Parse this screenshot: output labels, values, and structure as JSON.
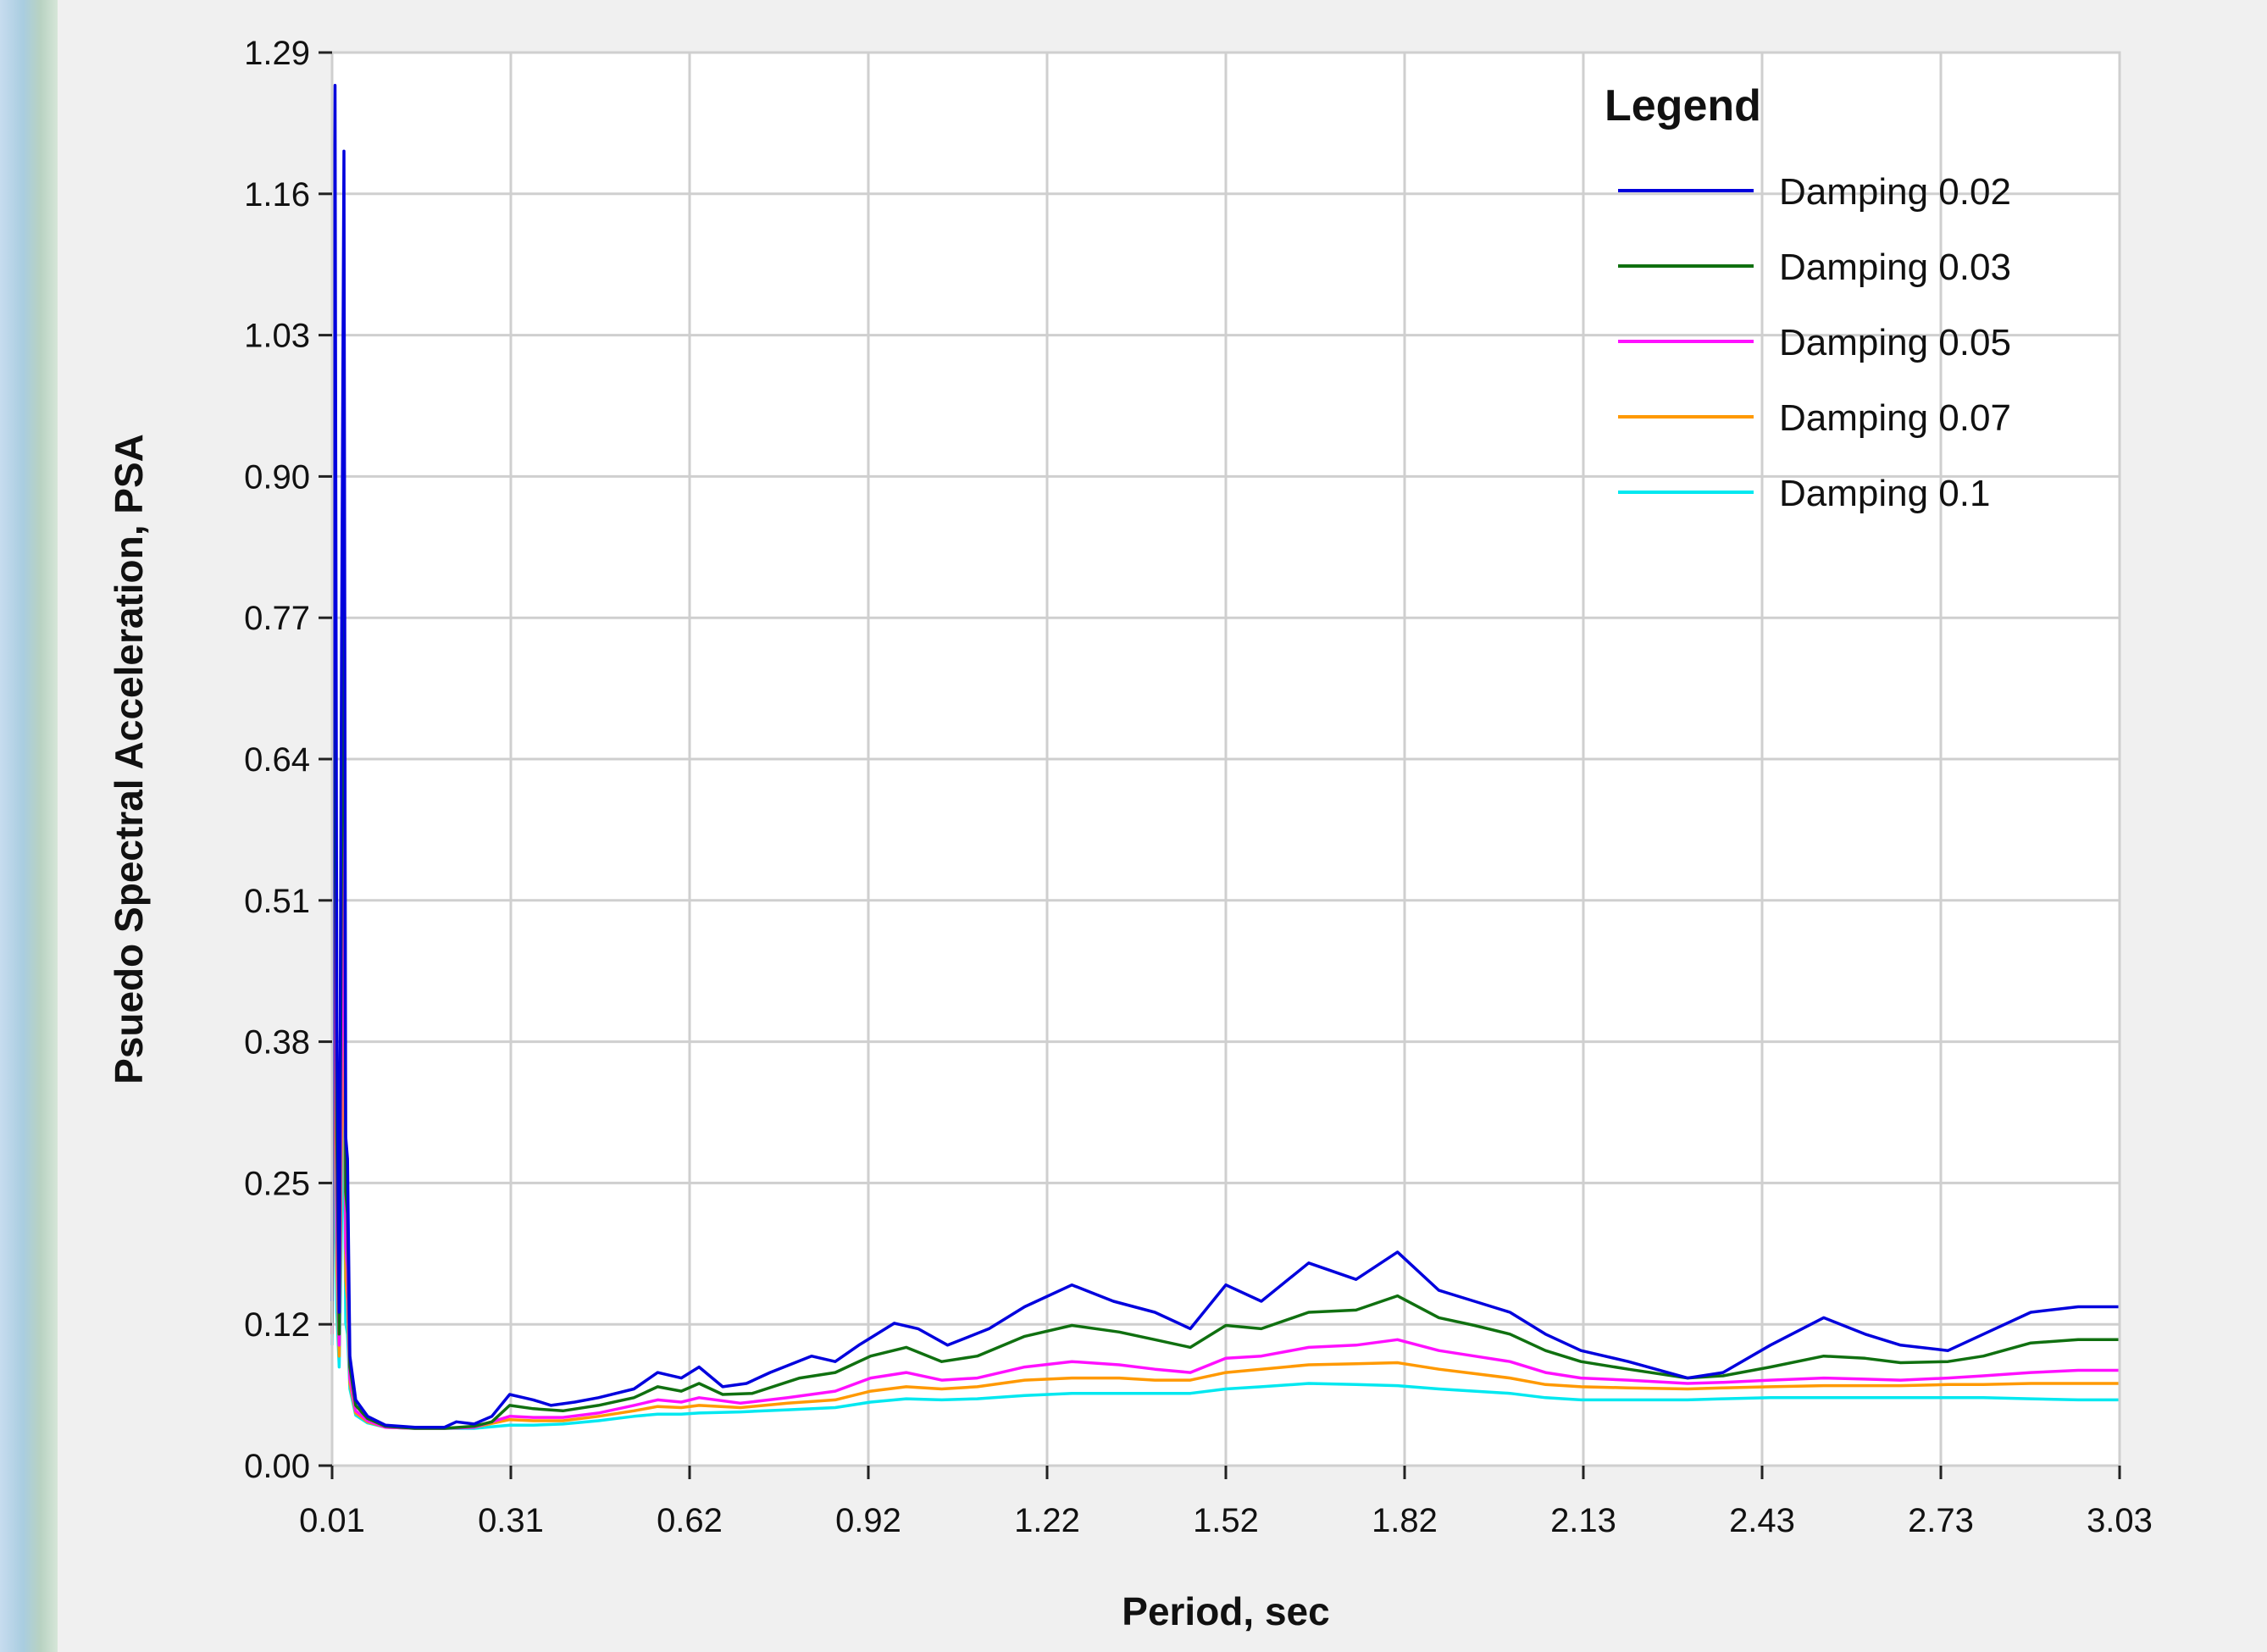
{
  "chart_data": {
    "type": "line",
    "xlabel": "Period, sec",
    "ylabel": "Psuedo Spectral Acceleration, PSA",
    "legend_title": "Legend",
    "legend_position": "top-right",
    "grid": true,
    "xlim": [
      0.01,
      3.03
    ],
    "ylim": [
      0.0,
      1.29
    ],
    "xticks": [
      "0.01",
      "0.31",
      "0.62",
      "0.92",
      "1.22",
      "1.52",
      "1.82",
      "2.13",
      "2.43",
      "2.73",
      "3.03"
    ],
    "yticks": [
      "0.00",
      "0.12",
      "0.25",
      "0.38",
      "0.51",
      "0.64",
      "0.77",
      "0.90",
      "1.03",
      "1.16",
      "1.29"
    ],
    "series": [
      {
        "name": "Damping 0.02",
        "color": "#0000dd",
        "points": [
          [
            0.01,
            0.15
          ],
          [
            0.012,
            0.8
          ],
          [
            0.015,
            1.26
          ],
          [
            0.018,
            0.4
          ],
          [
            0.022,
            0.14
          ],
          [
            0.026,
            0.75
          ],
          [
            0.03,
            1.2
          ],
          [
            0.033,
            0.3
          ],
          [
            0.036,
            0.28
          ],
          [
            0.04,
            0.1
          ],
          [
            0.05,
            0.06
          ],
          [
            0.07,
            0.045
          ],
          [
            0.1,
            0.037
          ],
          [
            0.15,
            0.035
          ],
          [
            0.2,
            0.035
          ],
          [
            0.22,
            0.04
          ],
          [
            0.25,
            0.038
          ],
          [
            0.28,
            0.045
          ],
          [
            0.31,
            0.065
          ],
          [
            0.35,
            0.06
          ],
          [
            0.38,
            0.055
          ],
          [
            0.42,
            0.058
          ],
          [
            0.46,
            0.062
          ],
          [
            0.52,
            0.07
          ],
          [
            0.56,
            0.085
          ],
          [
            0.6,
            0.08
          ],
          [
            0.63,
            0.09
          ],
          [
            0.67,
            0.072
          ],
          [
            0.71,
            0.075
          ],
          [
            0.75,
            0.085
          ],
          [
            0.82,
            0.1
          ],
          [
            0.86,
            0.095
          ],
          [
            0.9,
            0.11
          ],
          [
            0.96,
            0.13
          ],
          [
            1.0,
            0.125
          ],
          [
            1.05,
            0.11
          ],
          [
            1.12,
            0.125
          ],
          [
            1.18,
            0.145
          ],
          [
            1.26,
            0.165
          ],
          [
            1.33,
            0.15
          ],
          [
            1.4,
            0.14
          ],
          [
            1.46,
            0.125
          ],
          [
            1.52,
            0.165
          ],
          [
            1.58,
            0.15
          ],
          [
            1.66,
            0.185
          ],
          [
            1.74,
            0.17
          ],
          [
            1.81,
            0.195
          ],
          [
            1.88,
            0.16
          ],
          [
            1.94,
            0.15
          ],
          [
            2.0,
            0.14
          ],
          [
            2.06,
            0.12
          ],
          [
            2.12,
            0.105
          ],
          [
            2.2,
            0.095
          ],
          [
            2.3,
            0.08
          ],
          [
            2.36,
            0.085
          ],
          [
            2.44,
            0.11
          ],
          [
            2.53,
            0.135
          ],
          [
            2.6,
            0.12
          ],
          [
            2.66,
            0.11
          ],
          [
            2.74,
            0.105
          ],
          [
            2.8,
            0.12
          ],
          [
            2.88,
            0.14
          ],
          [
            2.96,
            0.145
          ],
          [
            3.03,
            0.145
          ]
        ]
      },
      {
        "name": "Damping 0.03",
        "color": "#107010",
        "points": [
          [
            0.01,
            0.13
          ],
          [
            0.012,
            0.6
          ],
          [
            0.015,
            0.92
          ],
          [
            0.018,
            0.3
          ],
          [
            0.022,
            0.12
          ],
          [
            0.026,
            0.55
          ],
          [
            0.03,
            0.9
          ],
          [
            0.033,
            0.25
          ],
          [
            0.036,
            0.23
          ],
          [
            0.04,
            0.09
          ],
          [
            0.05,
            0.055
          ],
          [
            0.07,
            0.043
          ],
          [
            0.1,
            0.036
          ],
          [
            0.15,
            0.034
          ],
          [
            0.2,
            0.034
          ],
          [
            0.25,
            0.036
          ],
          [
            0.28,
            0.04
          ],
          [
            0.31,
            0.055
          ],
          [
            0.35,
            0.052
          ],
          [
            0.4,
            0.05
          ],
          [
            0.46,
            0.055
          ],
          [
            0.52,
            0.062
          ],
          [
            0.56,
            0.072
          ],
          [
            0.6,
            0.068
          ],
          [
            0.63,
            0.075
          ],
          [
            0.67,
            0.065
          ],
          [
            0.72,
            0.066
          ],
          [
            0.8,
            0.08
          ],
          [
            0.86,
            0.085
          ],
          [
            0.92,
            0.1
          ],
          [
            0.98,
            0.108
          ],
          [
            1.04,
            0.095
          ],
          [
            1.1,
            0.1
          ],
          [
            1.18,
            0.118
          ],
          [
            1.26,
            0.128
          ],
          [
            1.34,
            0.122
          ],
          [
            1.4,
            0.115
          ],
          [
            1.46,
            0.108
          ],
          [
            1.52,
            0.128
          ],
          [
            1.58,
            0.125
          ],
          [
            1.66,
            0.14
          ],
          [
            1.74,
            0.142
          ],
          [
            1.81,
            0.155
          ],
          [
            1.88,
            0.135
          ],
          [
            1.94,
            0.128
          ],
          [
            2.0,
            0.12
          ],
          [
            2.06,
            0.105
          ],
          [
            2.12,
            0.095
          ],
          [
            2.2,
            0.088
          ],
          [
            2.3,
            0.08
          ],
          [
            2.36,
            0.082
          ],
          [
            2.44,
            0.09
          ],
          [
            2.53,
            0.1
          ],
          [
            2.6,
            0.098
          ],
          [
            2.66,
            0.094
          ],
          [
            2.74,
            0.095
          ],
          [
            2.8,
            0.1
          ],
          [
            2.88,
            0.112
          ],
          [
            2.96,
            0.115
          ],
          [
            3.03,
            0.115
          ]
        ]
      },
      {
        "name": "Damping 0.05",
        "color": "#ff10ff",
        "points": [
          [
            0.01,
            0.12
          ],
          [
            0.012,
            0.4
          ],
          [
            0.015,
            0.61
          ],
          [
            0.018,
            0.22
          ],
          [
            0.022,
            0.11
          ],
          [
            0.026,
            0.38
          ],
          [
            0.03,
            0.6
          ],
          [
            0.033,
            0.2
          ],
          [
            0.036,
            0.18
          ],
          [
            0.04,
            0.08
          ],
          [
            0.05,
            0.05
          ],
          [
            0.07,
            0.041
          ],
          [
            0.1,
            0.035
          ],
          [
            0.15,
            0.034
          ],
          [
            0.2,
            0.034
          ],
          [
            0.25,
            0.035
          ],
          [
            0.31,
            0.045
          ],
          [
            0.35,
            0.044
          ],
          [
            0.4,
            0.044
          ],
          [
            0.46,
            0.048
          ],
          [
            0.52,
            0.055
          ],
          [
            0.56,
            0.06
          ],
          [
            0.6,
            0.058
          ],
          [
            0.63,
            0.062
          ],
          [
            0.7,
            0.057
          ],
          [
            0.78,
            0.062
          ],
          [
            0.86,
            0.068
          ],
          [
            0.92,
            0.08
          ],
          [
            0.98,
            0.085
          ],
          [
            1.04,
            0.078
          ],
          [
            1.1,
            0.08
          ],
          [
            1.18,
            0.09
          ],
          [
            1.26,
            0.095
          ],
          [
            1.34,
            0.092
          ],
          [
            1.4,
            0.088
          ],
          [
            1.46,
            0.085
          ],
          [
            1.52,
            0.098
          ],
          [
            1.58,
            0.1
          ],
          [
            1.66,
            0.108
          ],
          [
            1.74,
            0.11
          ],
          [
            1.81,
            0.115
          ],
          [
            1.88,
            0.105
          ],
          [
            1.94,
            0.1
          ],
          [
            2.0,
            0.095
          ],
          [
            2.06,
            0.085
          ],
          [
            2.12,
            0.08
          ],
          [
            2.2,
            0.078
          ],
          [
            2.3,
            0.075
          ],
          [
            2.36,
            0.076
          ],
          [
            2.44,
            0.078
          ],
          [
            2.53,
            0.08
          ],
          [
            2.6,
            0.079
          ],
          [
            2.66,
            0.078
          ],
          [
            2.74,
            0.08
          ],
          [
            2.8,
            0.082
          ],
          [
            2.88,
            0.085
          ],
          [
            2.96,
            0.087
          ],
          [
            3.03,
            0.087
          ]
        ]
      },
      {
        "name": "Damping 0.07",
        "color": "#ff9900",
        "points": [
          [
            0.01,
            0.12
          ],
          [
            0.012,
            0.32
          ],
          [
            0.015,
            0.47
          ],
          [
            0.018,
            0.18
          ],
          [
            0.022,
            0.1
          ],
          [
            0.026,
            0.3
          ],
          [
            0.03,
            0.45
          ],
          [
            0.033,
            0.17
          ],
          [
            0.036,
            0.15
          ],
          [
            0.04,
            0.075
          ],
          [
            0.05,
            0.048
          ],
          [
            0.07,
            0.04
          ],
          [
            0.1,
            0.035
          ],
          [
            0.15,
            0.034
          ],
          [
            0.2,
            0.034
          ],
          [
            0.25,
            0.035
          ],
          [
            0.31,
            0.042
          ],
          [
            0.35,
            0.041
          ],
          [
            0.4,
            0.041
          ],
          [
            0.46,
            0.045
          ],
          [
            0.52,
            0.05
          ],
          [
            0.56,
            0.054
          ],
          [
            0.6,
            0.053
          ],
          [
            0.63,
            0.055
          ],
          [
            0.7,
            0.053
          ],
          [
            0.78,
            0.057
          ],
          [
            0.86,
            0.06
          ],
          [
            0.92,
            0.068
          ],
          [
            0.98,
            0.072
          ],
          [
            1.04,
            0.07
          ],
          [
            1.1,
            0.072
          ],
          [
            1.18,
            0.078
          ],
          [
            1.26,
            0.08
          ],
          [
            1.34,
            0.08
          ],
          [
            1.4,
            0.078
          ],
          [
            1.46,
            0.078
          ],
          [
            1.52,
            0.085
          ],
          [
            1.58,
            0.088
          ],
          [
            1.66,
            0.092
          ],
          [
            1.74,
            0.093
          ],
          [
            1.81,
            0.094
          ],
          [
            1.88,
            0.088
          ],
          [
            1.94,
            0.084
          ],
          [
            2.0,
            0.08
          ],
          [
            2.06,
            0.074
          ],
          [
            2.12,
            0.072
          ],
          [
            2.2,
            0.071
          ],
          [
            2.3,
            0.07
          ],
          [
            2.36,
            0.071
          ],
          [
            2.44,
            0.072
          ],
          [
            2.53,
            0.073
          ],
          [
            2.6,
            0.073
          ],
          [
            2.66,
            0.073
          ],
          [
            2.74,
            0.074
          ],
          [
            2.8,
            0.074
          ],
          [
            2.88,
            0.075
          ],
          [
            2.96,
            0.075
          ],
          [
            3.03,
            0.075
          ]
        ]
      },
      {
        "name": "Damping 0.1",
        "color": "#00e8f0",
        "points": [
          [
            0.01,
            0.11
          ],
          [
            0.012,
            0.22
          ],
          [
            0.015,
            0.3
          ],
          [
            0.018,
            0.14
          ],
          [
            0.022,
            0.09
          ],
          [
            0.026,
            0.22
          ],
          [
            0.03,
            0.33
          ],
          [
            0.033,
            0.13
          ],
          [
            0.036,
            0.12
          ],
          [
            0.04,
            0.07
          ],
          [
            0.05,
            0.046
          ],
          [
            0.07,
            0.039
          ],
          [
            0.1,
            0.035
          ],
          [
            0.15,
            0.034
          ],
          [
            0.2,
            0.034
          ],
          [
            0.25,
            0.034
          ],
          [
            0.31,
            0.037
          ],
          [
            0.35,
            0.037
          ],
          [
            0.4,
            0.038
          ],
          [
            0.46,
            0.041
          ],
          [
            0.52,
            0.045
          ],
          [
            0.56,
            0.047
          ],
          [
            0.6,
            0.047
          ],
          [
            0.63,
            0.048
          ],
          [
            0.7,
            0.049
          ],
          [
            0.78,
            0.051
          ],
          [
            0.86,
            0.053
          ],
          [
            0.92,
            0.058
          ],
          [
            0.98,
            0.061
          ],
          [
            1.04,
            0.06
          ],
          [
            1.1,
            0.061
          ],
          [
            1.18,
            0.064
          ],
          [
            1.26,
            0.066
          ],
          [
            1.34,
            0.066
          ],
          [
            1.4,
            0.066
          ],
          [
            1.46,
            0.066
          ],
          [
            1.52,
            0.07
          ],
          [
            1.58,
            0.072
          ],
          [
            1.66,
            0.075
          ],
          [
            1.74,
            0.074
          ],
          [
            1.81,
            0.073
          ],
          [
            1.88,
            0.07
          ],
          [
            1.94,
            0.068
          ],
          [
            2.0,
            0.066
          ],
          [
            2.06,
            0.062
          ],
          [
            2.12,
            0.06
          ],
          [
            2.2,
            0.06
          ],
          [
            2.3,
            0.06
          ],
          [
            2.36,
            0.061
          ],
          [
            2.44,
            0.062
          ],
          [
            2.53,
            0.062
          ],
          [
            2.6,
            0.062
          ],
          [
            2.66,
            0.062
          ],
          [
            2.74,
            0.062
          ],
          [
            2.8,
            0.062
          ],
          [
            2.88,
            0.061
          ],
          [
            2.96,
            0.06
          ],
          [
            3.03,
            0.06
          ]
        ]
      }
    ]
  }
}
